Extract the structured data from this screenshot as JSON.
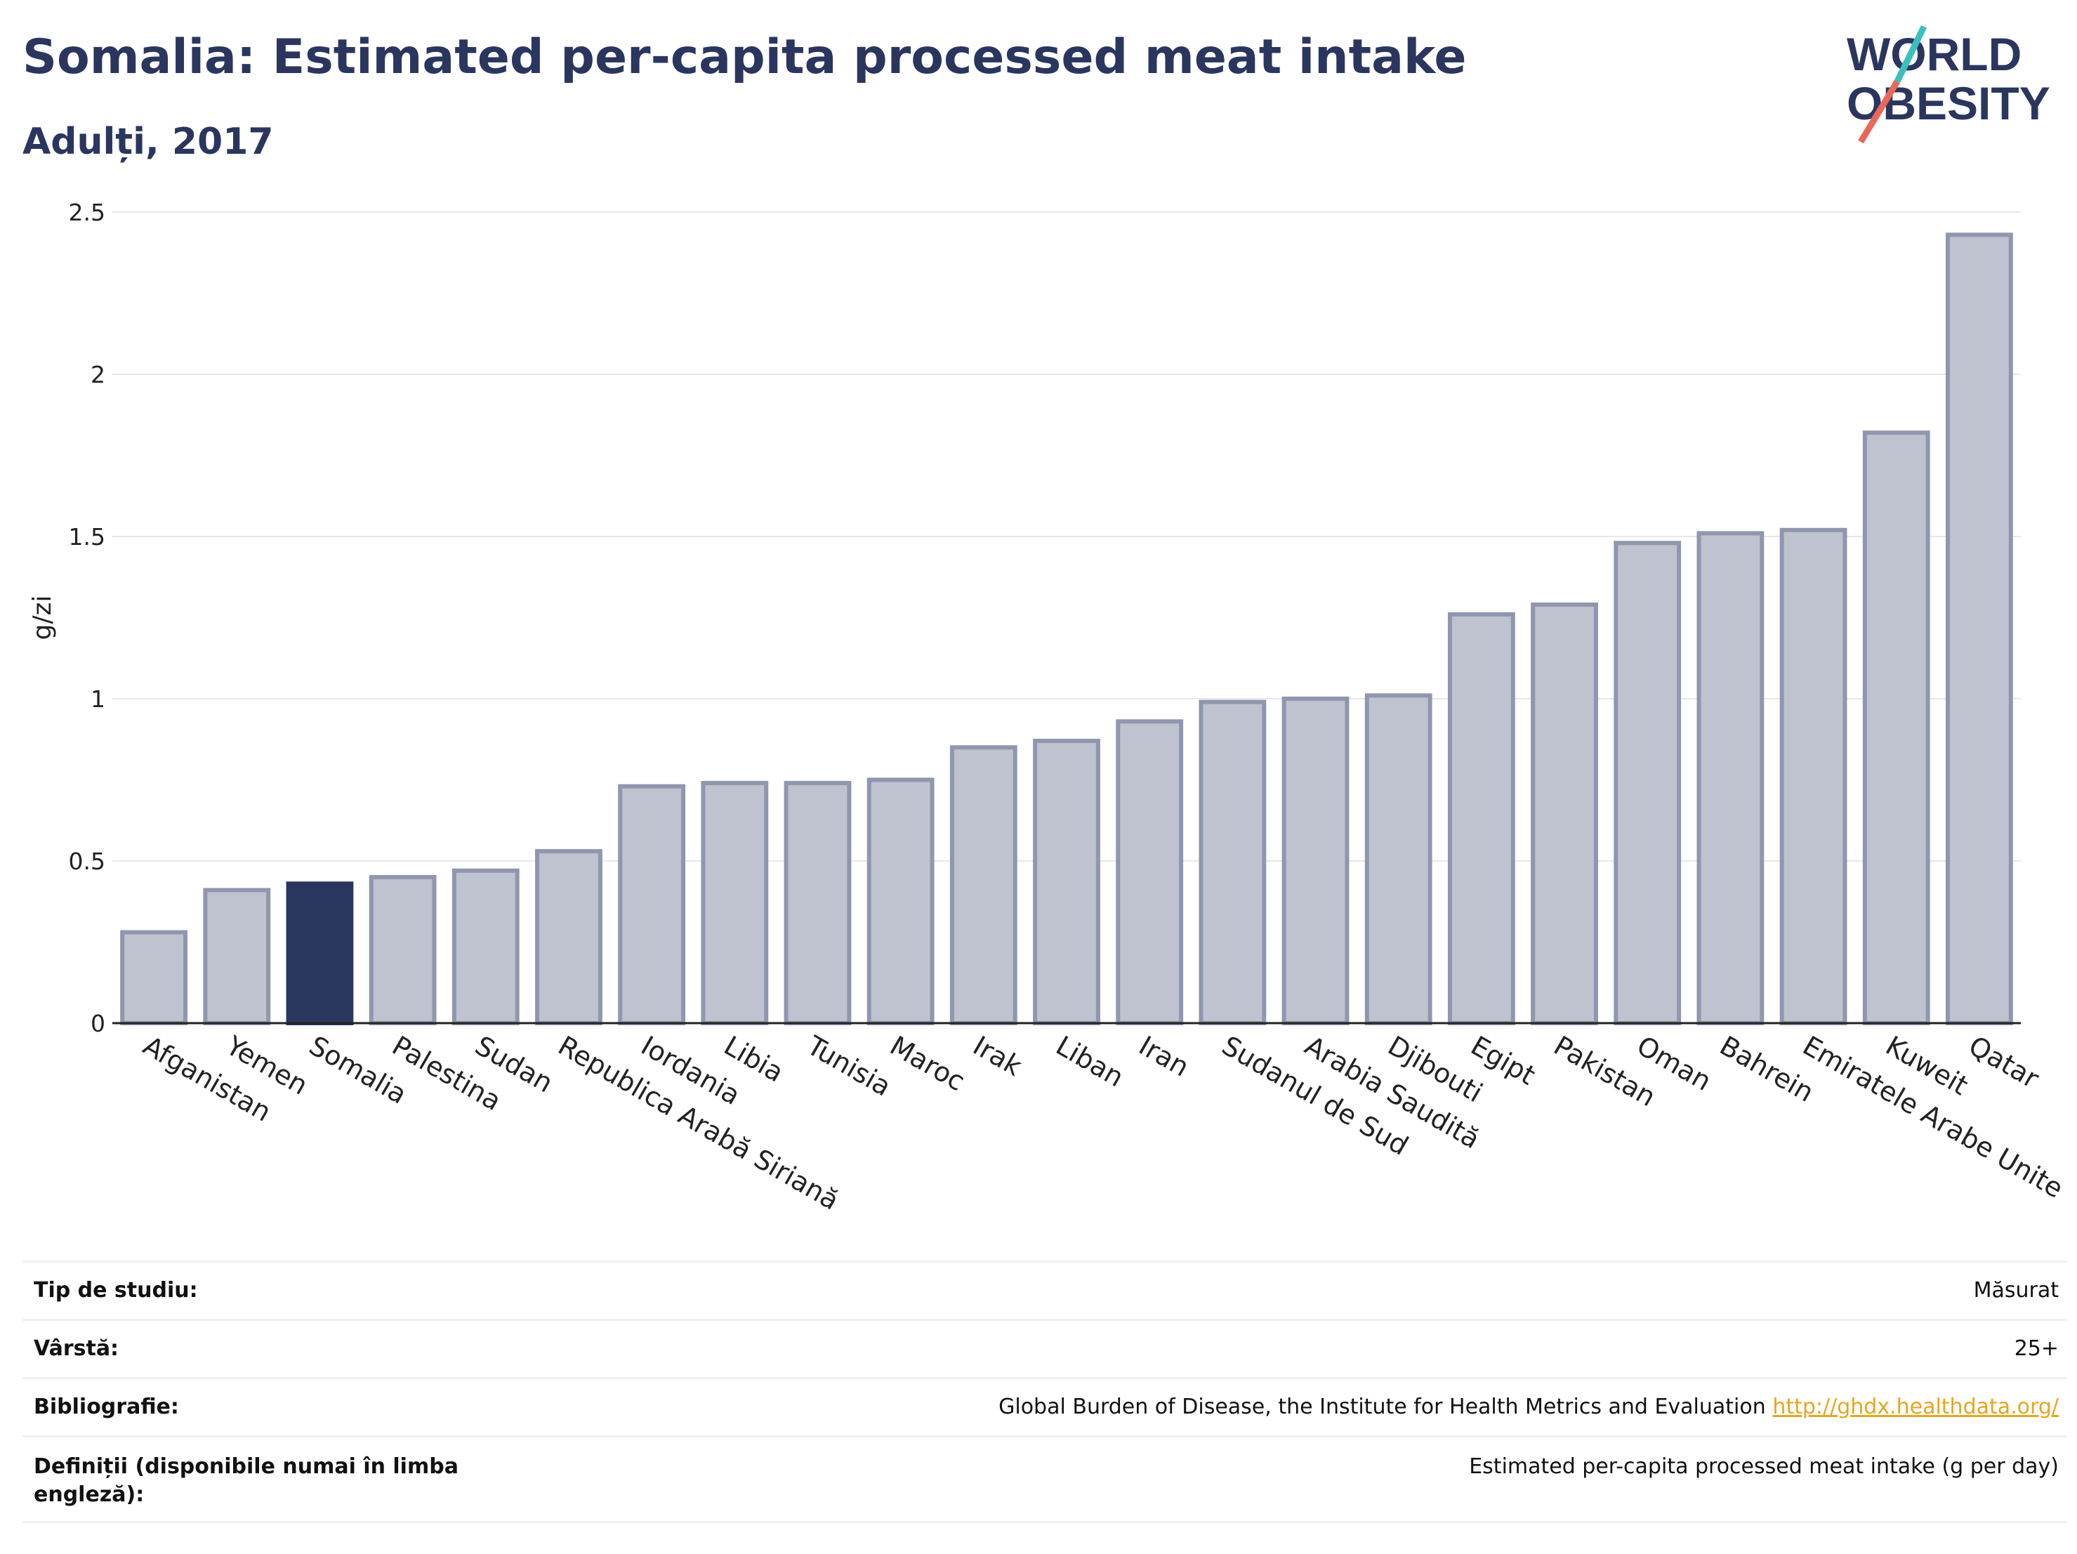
{
  "header": {
    "title": "Somalia: Estimated per-capita processed meat intake",
    "subtitle": "Adulți, 2017"
  },
  "logo": {
    "line1": "WORLD",
    "line2": "OBESITY"
  },
  "colors": {
    "bar": "#bfc2cf",
    "bar_border": "#9096ad",
    "highlight": "#2b365f",
    "text": "#2b365f",
    "logo_teal": "#3bbfbf",
    "logo_red": "#e8685a"
  },
  "chart_data": {
    "type": "bar",
    "ylabel": "g/zi",
    "ylim": [
      0,
      2.5
    ],
    "yticks": [
      "0",
      "0.5",
      "1",
      "1.5",
      "2",
      "2.5"
    ],
    "highlight": "Somalia",
    "categories": [
      "Afganistan",
      "Yemen",
      "Somalia",
      "Palestina",
      "Sudan",
      "Republica Arabă Siriană",
      "Iordania",
      "Libia",
      "Tunisia",
      "Maroc",
      "Irak",
      "Liban",
      "Iran",
      "Sudanul de Sud",
      "Arabia Saudită",
      "Djibouti",
      "Egipt",
      "Pakistan",
      "Oman",
      "Bahrein",
      "Emiratele Arabe Unite",
      "Kuweit",
      "Qatar"
    ],
    "values": [
      0.28,
      0.41,
      0.43,
      0.45,
      0.47,
      0.53,
      0.73,
      0.74,
      0.74,
      0.75,
      0.85,
      0.87,
      0.93,
      0.99,
      1.0,
      1.01,
      1.26,
      1.29,
      1.48,
      1.51,
      1.52,
      1.82,
      2.43
    ]
  },
  "table": [
    {
      "key": "Tip de studiu:",
      "value": "Măsurat"
    },
    {
      "key": "Vârstă:",
      "value": "25+"
    },
    {
      "key": "Bibliografie:",
      "value": "Global Burden of Disease, the Institute for Health Metrics and Evaluation",
      "link": "http://ghdx.healthdata.org/"
    },
    {
      "key": "Definiții (disponibile numai în limba engleză):",
      "value": "Estimated per-capita processed meat intake (g per day)"
    }
  ]
}
